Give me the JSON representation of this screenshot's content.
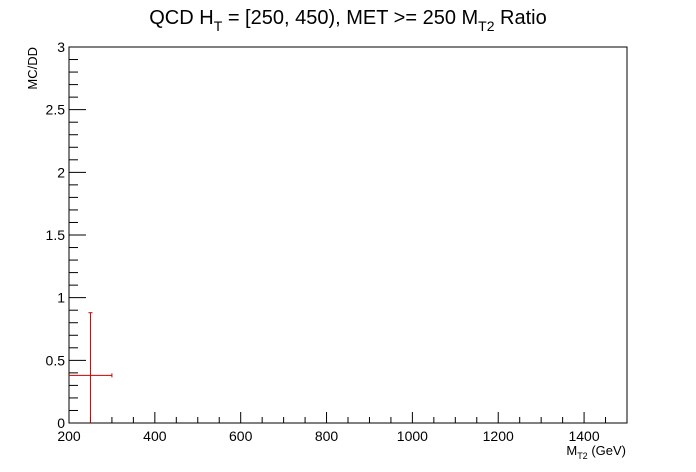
{
  "chart_data": {
    "type": "scatter",
    "title": {
      "prefix": "QCD H",
      "prefix_sub": "T",
      "middle": " = [250, 450), MET >= 250 M",
      "middle_sub": "T2",
      "suffix": " Ratio"
    },
    "xlabel": {
      "main": "M",
      "sub": "T2",
      "rest": " (GeV)"
    },
    "ylabel": "MC/DD",
    "xlim": [
      200,
      1500
    ],
    "ylim": [
      0,
      3
    ],
    "x_ticks": [
      200,
      400,
      600,
      800,
      1000,
      1200,
      1400
    ],
    "x_tick_labels": [
      "200",
      "400",
      "600",
      "800",
      "1000",
      "1200",
      "1400"
    ],
    "y_ticks": [
      0,
      0.5,
      1,
      1.5,
      2,
      2.5,
      3
    ],
    "y_tick_labels": [
      "0",
      "0.5",
      "1",
      "1.5",
      "2",
      "2.5",
      "3"
    ],
    "grid": false,
    "series": [
      {
        "color": "#cc0000",
        "points": [
          {
            "x": 250,
            "y": 0.38,
            "x_low": 200,
            "x_high": 300,
            "y_low": 0,
            "y_high": 0.88
          }
        ]
      }
    ]
  }
}
